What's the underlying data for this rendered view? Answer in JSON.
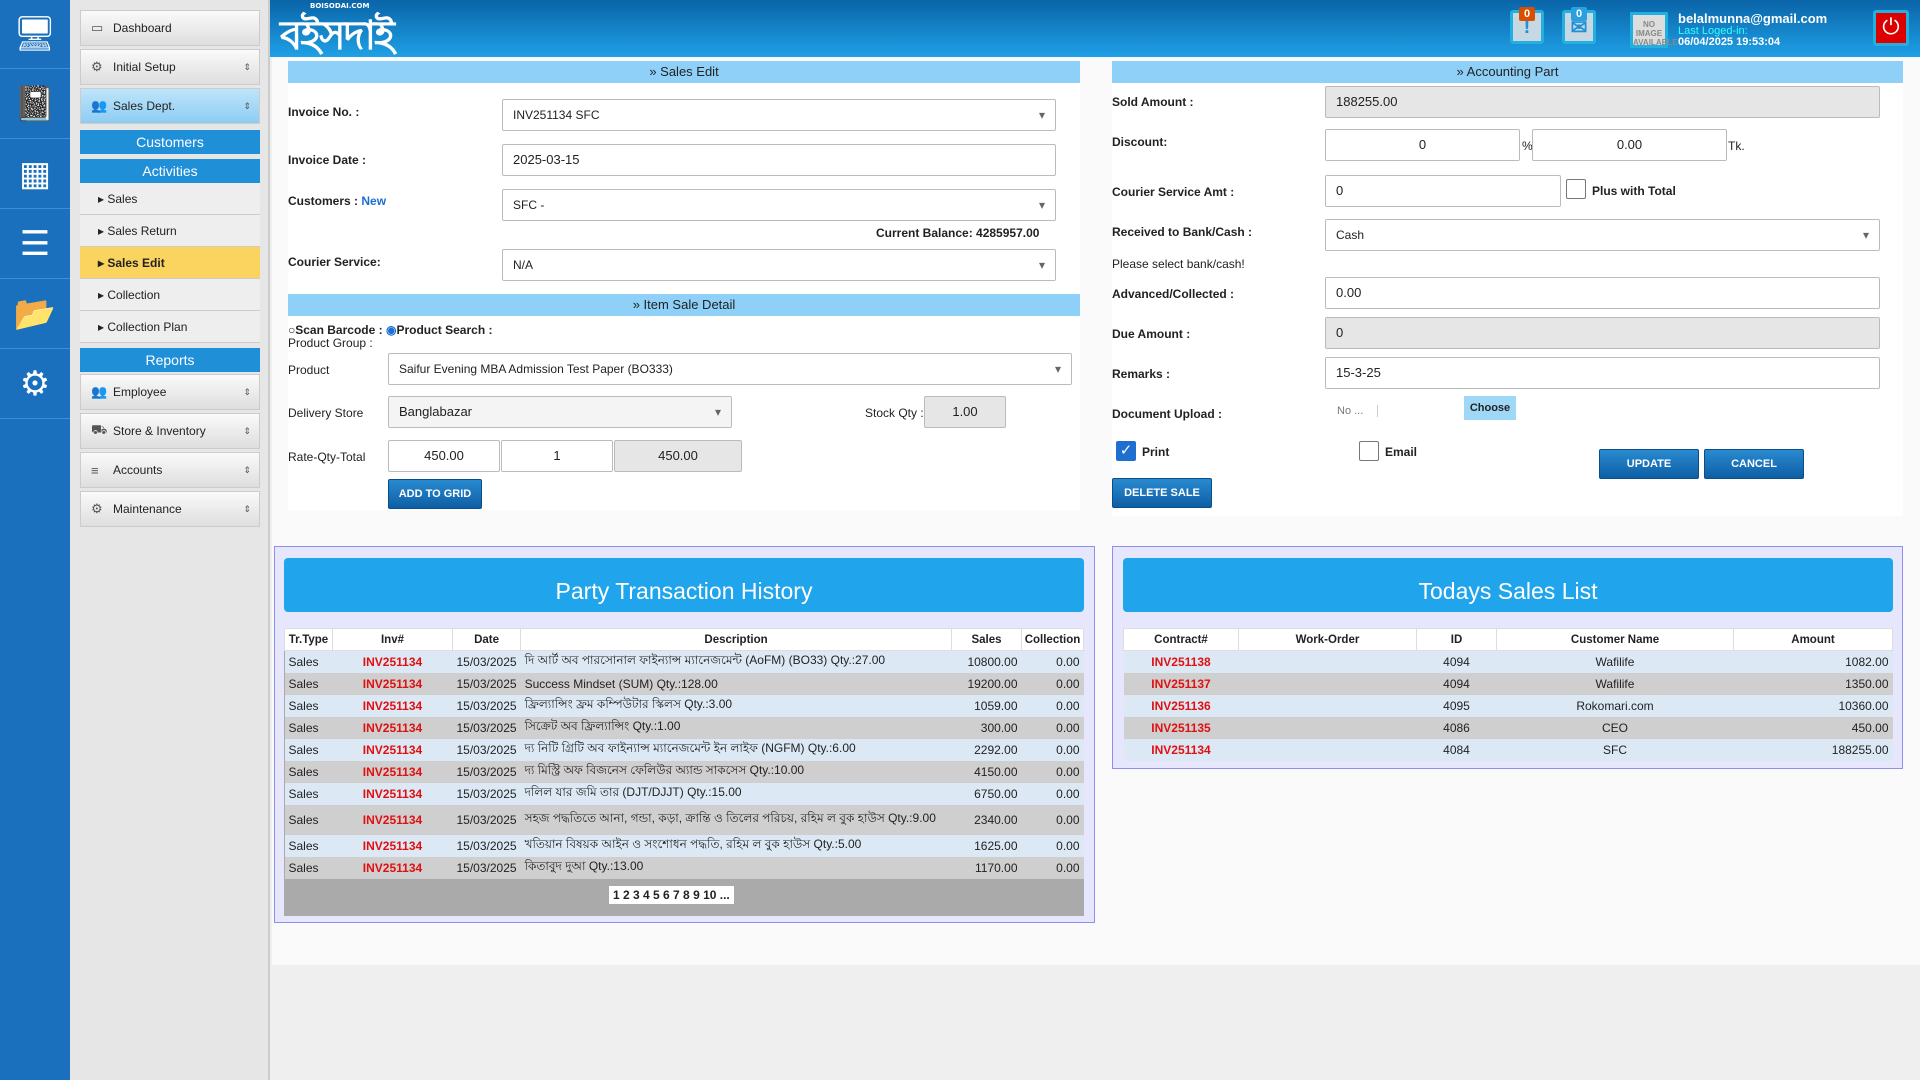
{
  "header": {
    "logo": "বইসদাই",
    "logo_small": "BOISODAI.COM",
    "alerts_count": "0",
    "messages_count": "0",
    "avatar_text": "NO IMAGE AVAILABLE",
    "email": "belalmunna@gmail.com",
    "last_login_label": "Last Loged-in:",
    "last_login": "06/04/2025 19:53:04"
  },
  "iconbar": [
    "monitor-icon",
    "book-icon",
    "calendar-icon",
    "ledger-icon",
    "folder-icon",
    "gear-icon"
  ],
  "sidebar": {
    "dashboard": "Dashboard",
    "initial_setup": "Initial Setup",
    "sales_dept": "Sales Dept.",
    "customers": "Customers",
    "activities": "Activities",
    "sub": [
      "Sales",
      "Sales Return",
      "Sales Edit",
      "Collection",
      "Collection Plan"
    ],
    "reports": "Reports",
    "employee": "Employee",
    "store": "Store & Inventory",
    "accounts": "Accounts",
    "maintenance": "Maintenance"
  },
  "sales_edit": {
    "title": "» Sales Edit",
    "invoice_label": "Invoice No. :",
    "invoice": "INV251134 SFC",
    "date_label": "Invoice Date :",
    "date": "2025-03-15",
    "customers_label": "Customers :",
    "new_link": "New",
    "customer": "SFC -",
    "balance": "Current Balance: 4285957.00",
    "courier_label": "Courier Service:",
    "courier": "N/A",
    "item_title": "» Item Sale Detail",
    "scan": "Scan Barcode :",
    "psearch": "Product Search :",
    "group_label": "Product Group :",
    "product_label": "Product",
    "product": "Saifur Evening MBA Admission Test Paper (BO333)",
    "store_label": "Delivery Store",
    "store": "Banglabazar",
    "stock_label": "Stock Qty :",
    "stock": "1.00",
    "rqt_label": "Rate-Qty-Total",
    "rate": "450.00",
    "qty": "1",
    "total": "450.00",
    "add": "ADD TO GRID"
  },
  "accounting": {
    "title": "» Accounting Part",
    "sold_label": "Sold Amount :",
    "sold": "188255.00",
    "discount_label": "Discount:",
    "disc_pct": "0",
    "pct": "%",
    "disc_amt": "0.00",
    "tk": "Tk.",
    "courier_label": "Courier Service Amt :",
    "courier": "0",
    "plus_total": "Plus with Total",
    "received_label": "Received to Bank/Cash :",
    "received": "Cash",
    "bank_msg": "Please select bank/cash!",
    "advanced_label": "Advanced/Collected :",
    "advanced": "0.00",
    "due_label": "Due Amount :",
    "due": "0",
    "remarks_label": "Remarks :",
    "remarks": "15-3-25",
    "doc_label": "Document Upload :",
    "no_file": "No ...",
    "choose": "Choose",
    "print": "Print",
    "email": "Email",
    "update": "UPDATE",
    "cancel": "CANCEL",
    "delete": "DELETE SALE"
  },
  "party": {
    "title": "Party Transaction History",
    "columns": [
      "Tr.Type",
      "Inv#",
      "Date",
      "Description",
      "Sales",
      "Collection"
    ],
    "rows": [
      [
        "Sales",
        "INV251134",
        "15/03/2025",
        "দি আর্ট অব পারসোনাল ফাইন্যান্স ম্যানেজমেন্ট (AoFM) (BO33) Qty.:27.00",
        "10800.00",
        "0.00"
      ],
      [
        "Sales",
        "INV251134",
        "15/03/2025",
        "Success Mindset (SUM) Qty.:128.00",
        "19200.00",
        "0.00"
      ],
      [
        "Sales",
        "INV251134",
        "15/03/2025",
        "ফ্রিল্যান্সিং ফ্রম কম্পিউটার স্কিলস Qty.:3.00",
        "1059.00",
        "0.00"
      ],
      [
        "Sales",
        "INV251134",
        "15/03/2025",
        "সিক্রেট অব ফ্রিল্যান্সিং Qty.:1.00",
        "300.00",
        "0.00"
      ],
      [
        "Sales",
        "INV251134",
        "15/03/2025",
        "দ্য নিটি গ্রিটি অব ফাইন্যান্স ম্যানেজমেন্ট ইন লাইফ (NGFM) Qty.:6.00",
        "2292.00",
        "0.00"
      ],
      [
        "Sales",
        "INV251134",
        "15/03/2025",
        "দ্য মিস্ট্রি অফ বিজনেস ফেলিউর অ্যান্ড সাকসেস Qty.:10.00",
        "4150.00",
        "0.00"
      ],
      [
        "Sales",
        "INV251134",
        "15/03/2025",
        "দলিল যার জমি তার (DJT/DJJT) Qty.:15.00",
        "6750.00",
        "0.00"
      ],
      [
        "Sales",
        "INV251134",
        "15/03/2025",
        "সহজ পদ্ধতিতে আনা, গন্ডা, কড়া, ক্রান্তি ও তিলের পরিচয়, রহিম ল বুক হাউস Qty.:9.00",
        "2340.00",
        "0.00"
      ],
      [
        "Sales",
        "INV251134",
        "15/03/2025",
        "খতিয়ান বিষয়ক আইন ও সংশোধন পদ্ধতি, রহিম ল বুক হাউস Qty.:5.00",
        "1625.00",
        "0.00"
      ],
      [
        "Sales",
        "INV251134",
        "15/03/2025",
        "কিতাবুদ দুআ Qty.:13.00",
        "1170.00",
        "0.00"
      ]
    ],
    "pages": "1 2 3 4 5 6 7 8 9 10 ..."
  },
  "today": {
    "title": "Todays Sales List",
    "columns": [
      "Contract#",
      "Work-Order",
      "ID",
      "Customer Name",
      "Amount"
    ],
    "rows": [
      [
        "INV251138",
        "",
        "4094",
        "Wafilife",
        "1082.00"
      ],
      [
        "INV251137",
        "",
        "4094",
        "Wafilife",
        "1350.00"
      ],
      [
        "INV251136",
        "",
        "4095",
        "Rokomari.com",
        "10360.00"
      ],
      [
        "INV251135",
        "",
        "4086",
        "CEO",
        "450.00"
      ],
      [
        "INV251134",
        "",
        "4084",
        "SFC",
        "188255.00"
      ]
    ]
  }
}
